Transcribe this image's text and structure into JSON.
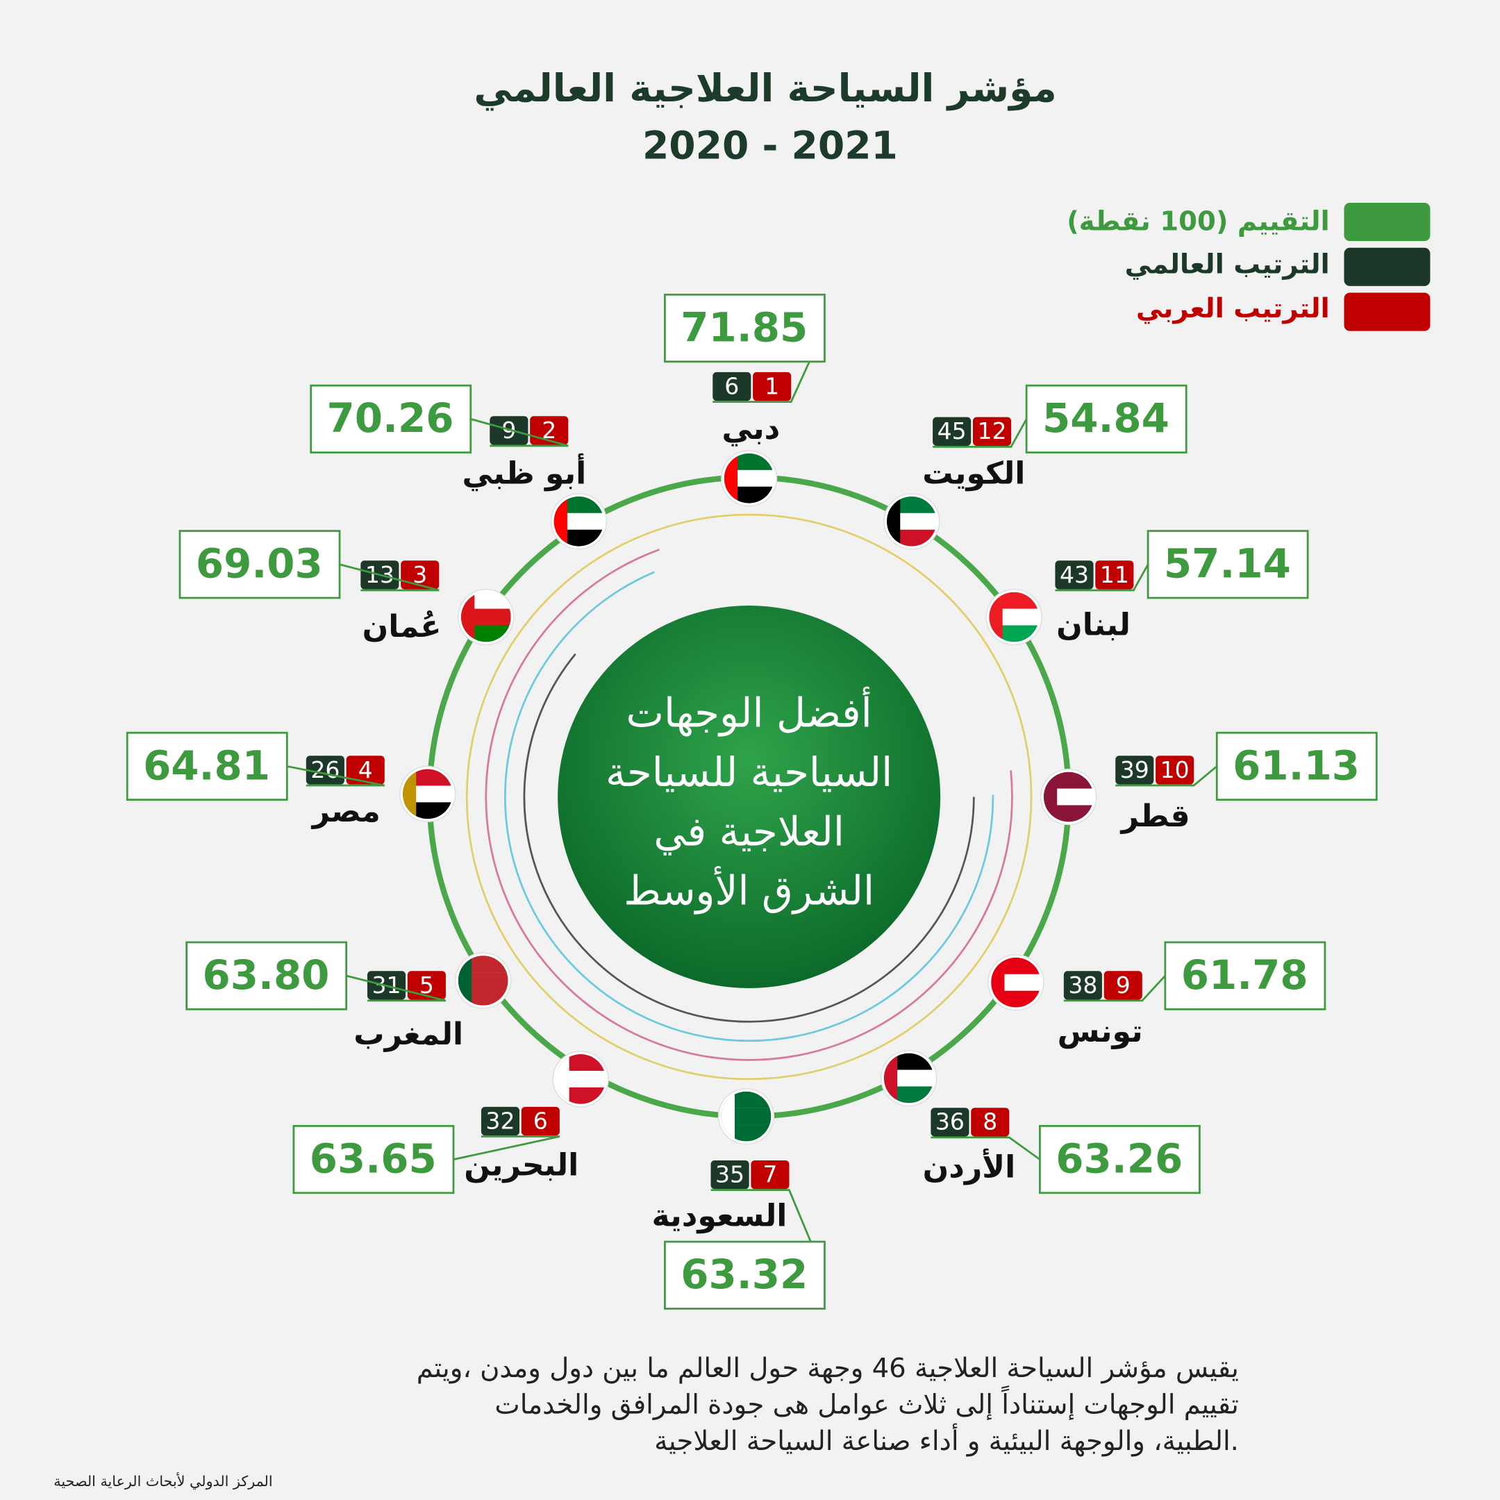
{
  "header": {
    "title": "مؤشر السياحة العلاجية العالمي",
    "subtitle": "2020 - 2021"
  },
  "legend": {
    "score": "التقييم (100 نقطة)",
    "world_rank": "الترتيب العالمي",
    "arab_rank": "الترتيب العربي"
  },
  "center": {
    "lines": [
      "أفضل الوجهات",
      "السياحية للسياحة",
      "العلاجية  في",
      "الشرق الأوسط"
    ]
  },
  "destinations": [
    {
      "name": "دبي",
      "score": "71.85",
      "world_rank": 6,
      "arab_rank": 1
    },
    {
      "name": "الكويت",
      "score": "54.84",
      "world_rank": 45,
      "arab_rank": 12
    },
    {
      "name": "لبنان",
      "score": "57.14",
      "world_rank": 43,
      "arab_rank": 11
    },
    {
      "name": "قطر",
      "score": "61.13",
      "world_rank": 39,
      "arab_rank": 10
    },
    {
      "name": "تونس",
      "score": "61.78",
      "world_rank": 38,
      "arab_rank": 9
    },
    {
      "name": "الأردن",
      "score": "63.26",
      "world_rank": 36,
      "arab_rank": 8
    },
    {
      "name": "السعودية",
      "score": "63.32",
      "world_rank": 35,
      "arab_rank": 7
    },
    {
      "name": "البحرين",
      "score": "63.65",
      "world_rank": 32,
      "arab_rank": 6
    },
    {
      "name": "المغرب",
      "score": "63.80",
      "world_rank": 31,
      "arab_rank": 5
    },
    {
      "name": "مصر",
      "score": "64.81",
      "world_rank": 26,
      "arab_rank": 4
    },
    {
      "name": "عُمان",
      "score": "69.03",
      "world_rank": 13,
      "arab_rank": 3
    },
    {
      "name": "أبو ظبي",
      "score": "70.26",
      "world_rank": 9,
      "arab_rank": 2
    }
  ],
  "footer": {
    "lines": [
      "يقيس مؤشر السياحة العلاجية 46 وجهة حول العالم ما بين دول ومدن ،ويتم",
      "تقييم الوجهات إستناداً إلى ثلاث عوامل هى جودة المرافق والخدمات",
      "الطبية، والوجهة البيئية و أداء صناعة السياحة العلاجية."
    ],
    "source": "المركز الدولي لأبحاث الرعاية الصحية"
  }
}
